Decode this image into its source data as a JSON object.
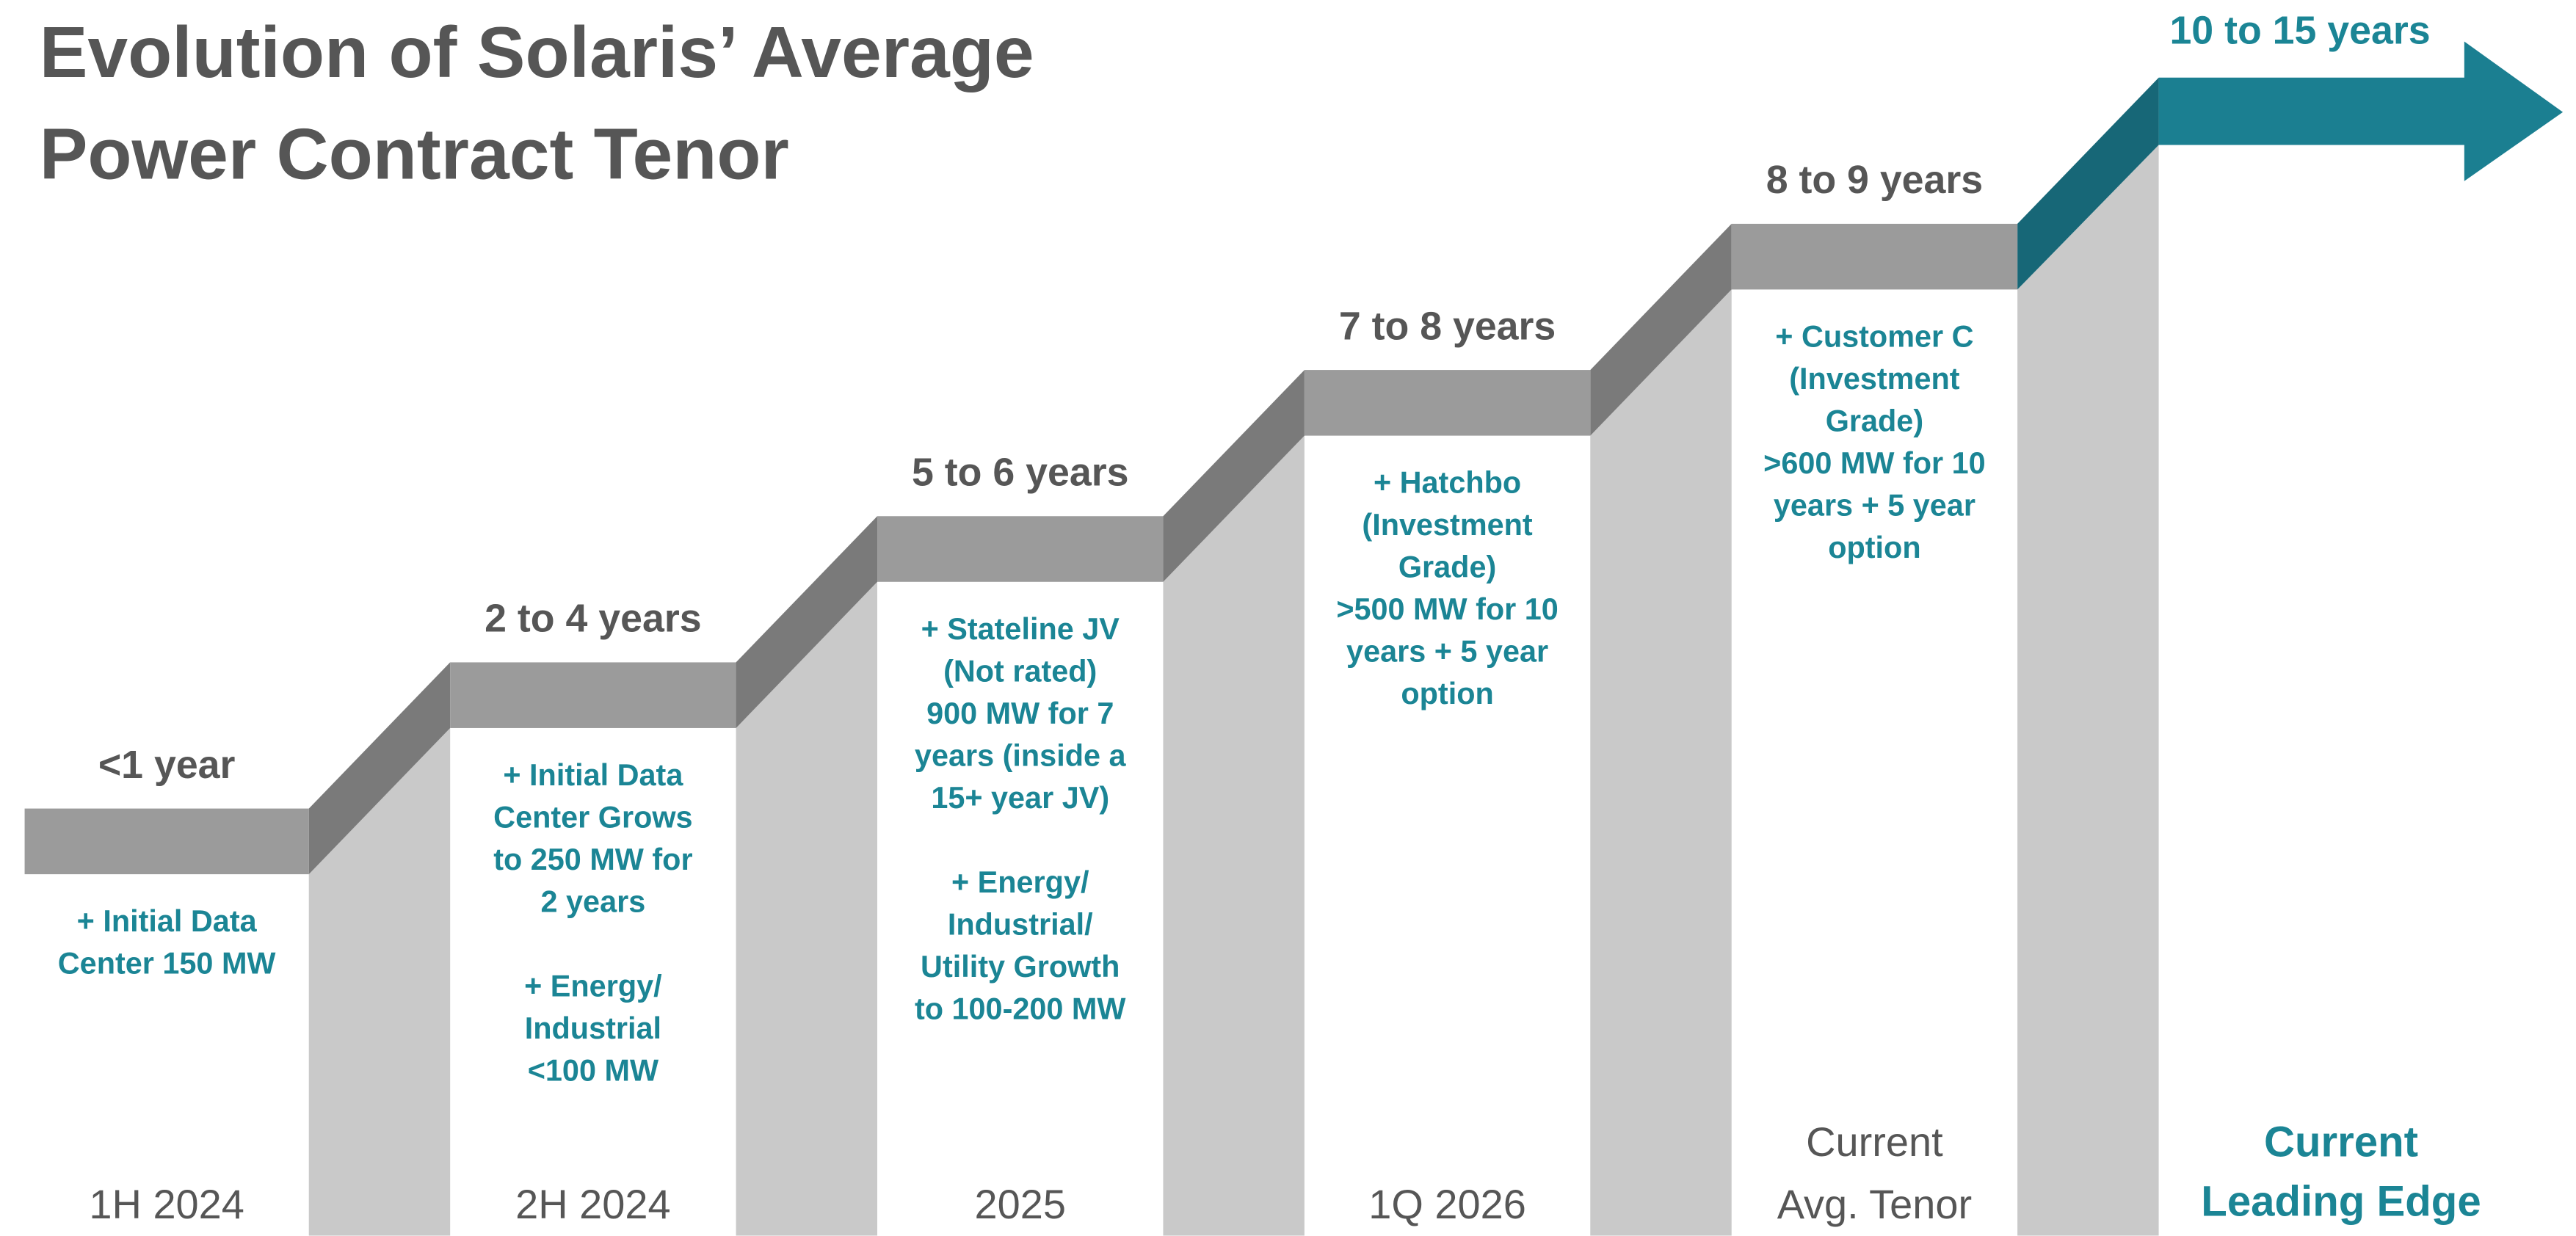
{
  "title": [
    "Evolution of Solaris’ Average",
    "Power Contract Tenor"
  ],
  "steps": [
    {
      "tenor": "<1 year",
      "description": [
        [
          "+ Initial Data",
          "Center 150 MW"
        ]
      ],
      "period": [
        "1H 2024"
      ]
    },
    {
      "tenor": "2 to 4 years",
      "description": [
        [
          "+ Initial Data",
          "Center Grows",
          "to 250 MW for",
          "2 years"
        ],
        [
          "+ Energy/",
          "Industrial",
          "<100 MW"
        ]
      ],
      "period": [
        "2H 2024"
      ]
    },
    {
      "tenor": "5 to 6 years",
      "description": [
        [
          "+ Stateline JV",
          "(Not rated)",
          "900 MW for 7",
          "years (inside a",
          "15+ year JV)"
        ],
        [
          "+ Energy/",
          "Industrial/",
          "Utility Growth",
          "to 100-200 MW"
        ]
      ],
      "period": [
        "2025"
      ]
    },
    {
      "tenor": "7 to 8 years",
      "description": [
        [
          "+ Hatchbo",
          "(Investment",
          "Grade)",
          ">500 MW for 10",
          "years + 5 year",
          "option"
        ]
      ],
      "period": [
        "1Q 2026"
      ]
    },
    {
      "tenor": "8 to 9 years",
      "description": [
        [
          "+ Customer C",
          "(Investment",
          "Grade)",
          ">600 MW for 10",
          "years + 5 year",
          "option"
        ]
      ],
      "period": [
        "Current",
        "Avg. Tenor"
      ]
    }
  ],
  "final": {
    "tenor": "10 to 15 years",
    "label": [
      "Current",
      "Leading Edge"
    ]
  }
}
